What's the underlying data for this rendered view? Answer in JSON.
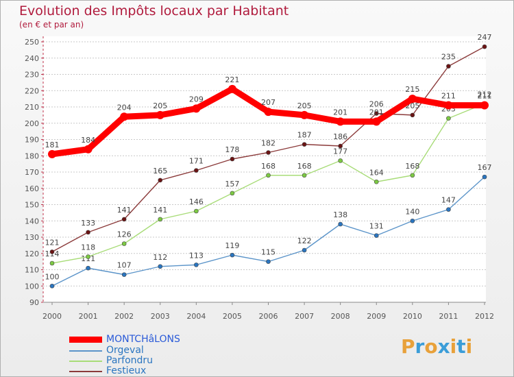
{
  "header": {
    "title": "Evolution des Impôts locaux par Habitant",
    "subtitle": "(en € et par an)"
  },
  "logo": {
    "letters": [
      "P",
      "r",
      "o",
      "x",
      "i",
      "t",
      "i"
    ],
    "colors": [
      "#e8a13a",
      "#3b9dd8",
      "#e8a13a",
      "#3b9dd8",
      "#e8a13a",
      "#3b9dd8",
      "#e8a13a"
    ]
  },
  "chart_data": {
    "type": "line",
    "title": "Evolution des Impôts locaux par Habitant",
    "subtitle": "(en € et par an)",
    "xlabel": "",
    "ylabel": "",
    "ylim": [
      90,
      250
    ],
    "yticks": [
      90,
      100,
      110,
      120,
      130,
      140,
      150,
      160,
      170,
      180,
      190,
      200,
      210,
      220,
      230,
      240,
      250
    ],
    "grid": "horizontal dashed",
    "categories": [
      "2000",
      "2001",
      "2002",
      "2003",
      "2004",
      "2005",
      "2006",
      "2007",
      "2008",
      "2009",
      "2010",
      "2011",
      "2012"
    ],
    "series": [
      {
        "name": "Orgeval",
        "color": "#5b94c9",
        "marker": "#2a75c0",
        "values": [
          100,
          111,
          107,
          112,
          113,
          119,
          115,
          122,
          138,
          131,
          140,
          147,
          167
        ]
      },
      {
        "name": "Parfondru",
        "color": "#a8dc78",
        "marker": "#7cc943",
        "values": [
          114,
          118,
          126,
          141,
          146,
          157,
          168,
          168,
          177,
          164,
          168,
          203,
          212
        ]
      },
      {
        "name": "Festieux",
        "color": "#8b3a3a",
        "marker": "#6b1414",
        "values": [
          121,
          133,
          141,
          165,
          171,
          178,
          182,
          187,
          186,
          206,
          205,
          235,
          247
        ]
      },
      {
        "name": "MONTCHâLONS",
        "color": "#ff0000",
        "marker": "#ff0000",
        "values": [
          181,
          184,
          204,
          205,
          209,
          221,
          207,
          205,
          201,
          201,
          215,
          211,
          211
        ]
      }
    ],
    "legend": {
      "placement": "bottom-left",
      "entries": [
        {
          "label": "MONTCHâLONS",
          "color": "#ff0000",
          "text_color": "#2a5ad8"
        },
        {
          "label": "Orgeval",
          "color": "#5b94c9",
          "text_color": "#2a75c0"
        },
        {
          "label": "Parfondru",
          "color": "#a8dc78",
          "text_color": "#2a75c0"
        },
        {
          "label": "Festieux",
          "color": "#8b3a3a",
          "text_color": "#2a75c0"
        }
      ]
    }
  }
}
